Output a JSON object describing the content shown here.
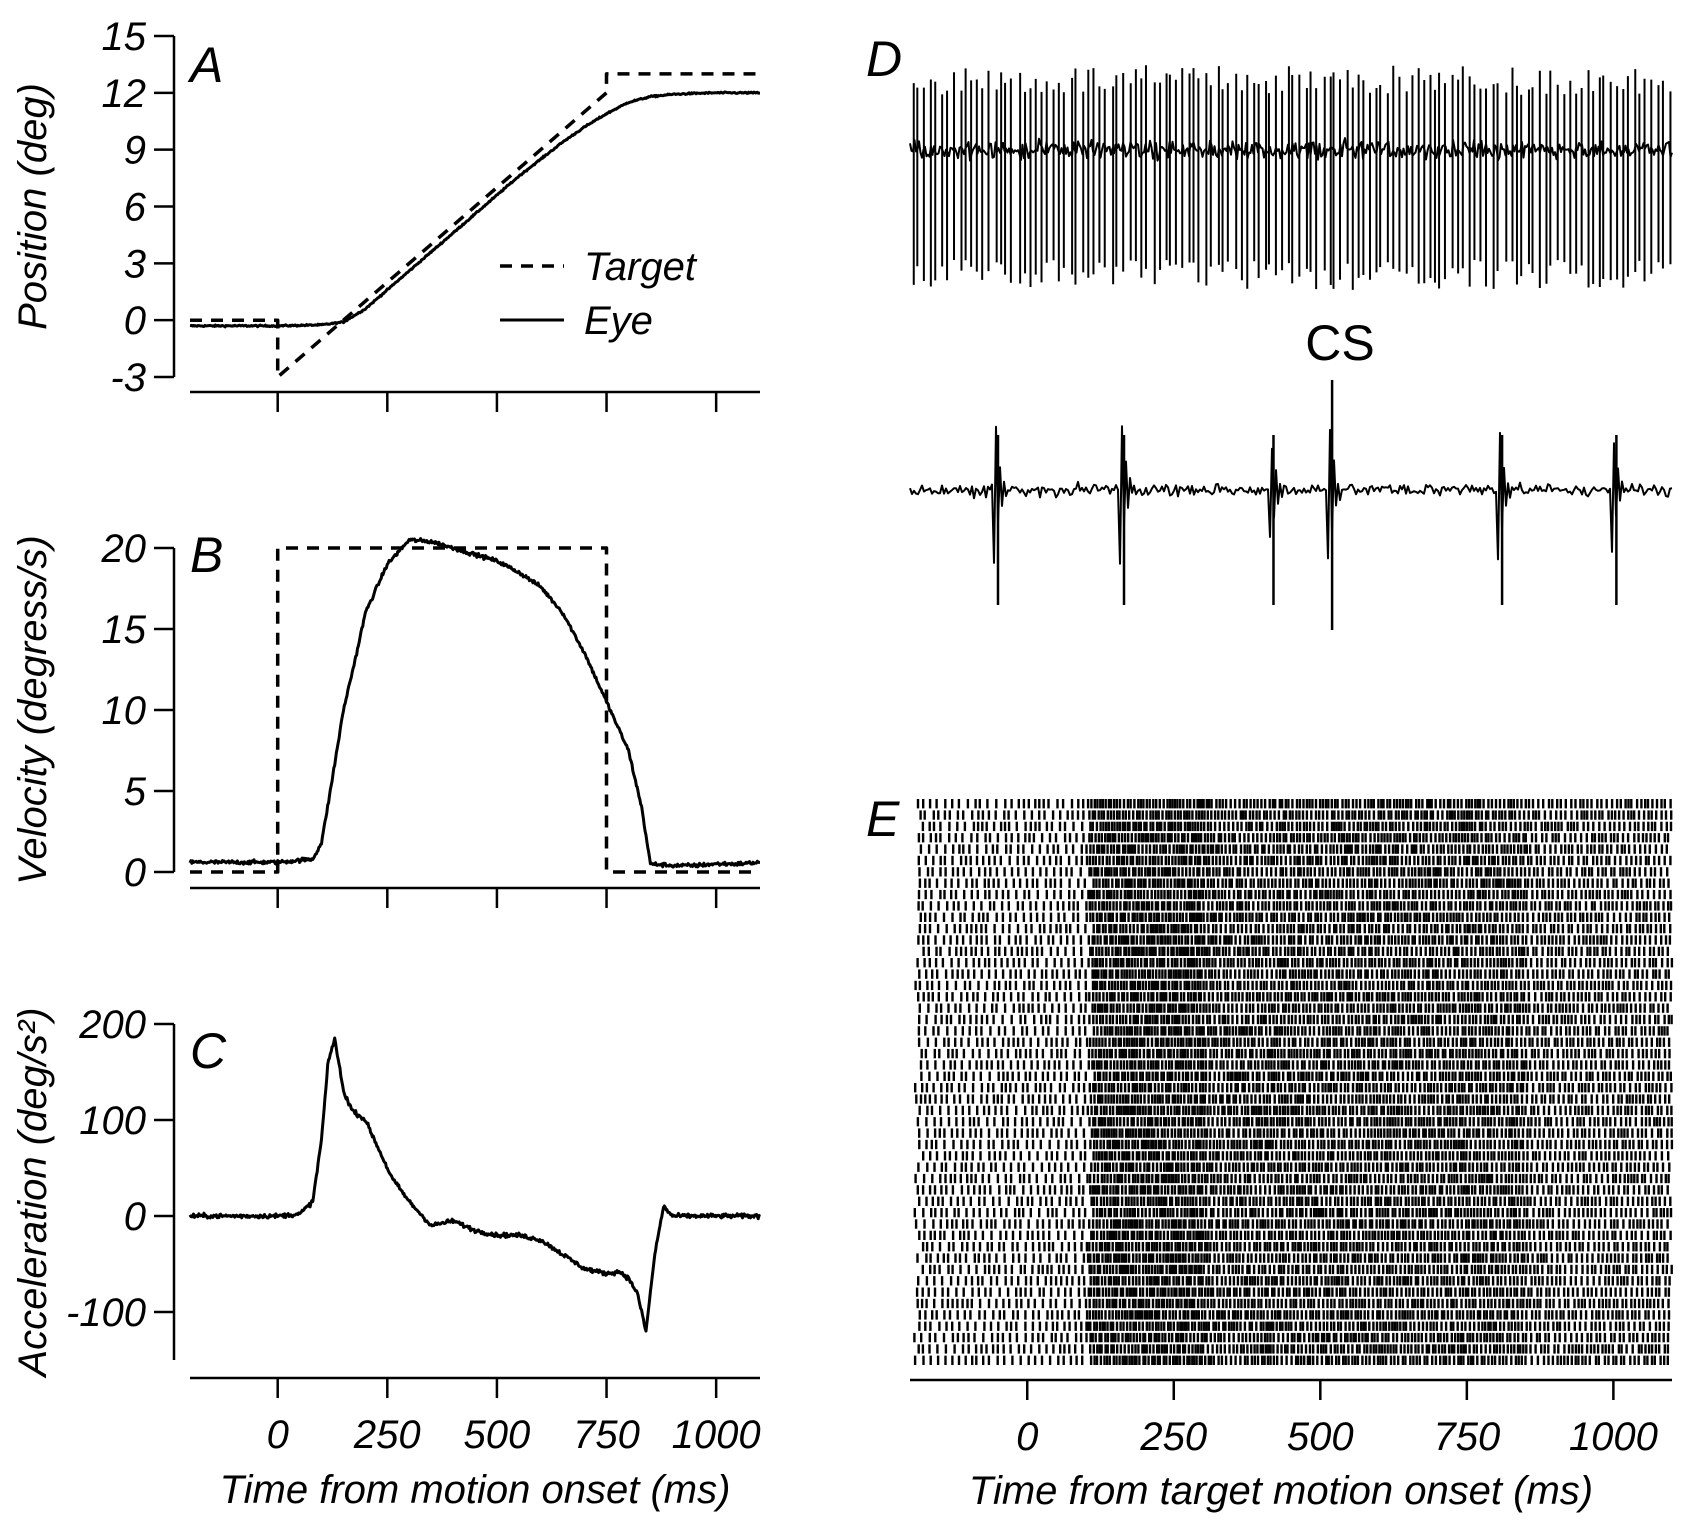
{
  "chart_data": [
    {
      "panel": "A",
      "type": "line",
      "ylabel": "Position (deg)",
      "xlabel": "",
      "xlim": [
        -200,
        1100
      ],
      "ylim": [
        -3,
        15
      ],
      "xticks": [
        0,
        250,
        500,
        750,
        1000
      ],
      "xtick_labels_shown": false,
      "yticks": [
        -3,
        0,
        3,
        6,
        9,
        12,
        15
      ],
      "legend": {
        "placement": "center-right"
      },
      "series": [
        {
          "name": "Target",
          "style": "dashed",
          "x": [
            -200,
            0,
            0,
            750,
            750,
            1100
          ],
          "y": [
            0,
            0,
            -3,
            12,
            13,
            13
          ]
        },
        {
          "name": "Eye",
          "style": "solid",
          "x": [
            -200,
            0,
            100,
            150,
            200,
            250,
            300,
            350,
            400,
            450,
            500,
            550,
            600,
            650,
            700,
            750,
            800,
            850,
            900,
            950,
            1000,
            1050,
            1100
          ],
          "y": [
            -0.3,
            -0.3,
            -0.25,
            -0.1,
            0.6,
            1.6,
            2.6,
            3.6,
            4.6,
            5.6,
            6.6,
            7.6,
            8.5,
            9.4,
            10.2,
            10.9,
            11.5,
            11.8,
            11.92,
            11.97,
            12.0,
            12.0,
            12.0
          ]
        }
      ]
    },
    {
      "panel": "B",
      "type": "line",
      "ylabel": "Velocity (degress/s)",
      "xlabel": "",
      "xlim": [
        -200,
        1100
      ],
      "ylim": [
        0,
        20
      ],
      "xticks": [
        0,
        250,
        500,
        750,
        1000
      ],
      "xtick_labels_shown": false,
      "yticks": [
        0,
        5,
        10,
        15,
        20
      ],
      "series": [
        {
          "style": "dashed",
          "x": [
            -200,
            0,
            0,
            750,
            750,
            1100
          ],
          "y": [
            0,
            0,
            20,
            20,
            0,
            0
          ]
        },
        {
          "style": "solid",
          "x": [
            -200,
            0,
            80,
            100,
            120,
            150,
            180,
            200,
            250,
            300,
            350,
            400,
            450,
            500,
            550,
            600,
            650,
            700,
            750,
            800,
            830,
            850,
            900,
            950,
            1000,
            1050,
            1100
          ],
          "y": [
            0.6,
            0.6,
            0.8,
            1.8,
            5,
            10,
            13.5,
            16,
            19,
            20.5,
            20.4,
            20,
            19.6,
            19.2,
            18.5,
            17.6,
            16,
            13.5,
            10.5,
            7.5,
            4,
            0.5,
            0.4,
            0.4,
            0.5,
            0.5,
            0.6
          ]
        }
      ]
    },
    {
      "panel": "C",
      "type": "line",
      "ylabel": "Acceleration (deg/s²)",
      "xlabel": "Time from motion onset (ms)",
      "xlim": [
        -200,
        1100
      ],
      "ylim": [
        -150,
        200
      ],
      "xticks": [
        0,
        250,
        500,
        750,
        1000
      ],
      "xtick_labels_shown": true,
      "yticks": [
        -100,
        0,
        100,
        200
      ],
      "series": [
        {
          "style": "solid",
          "x": [
            -200,
            0,
            50,
            80,
            100,
            115,
            130,
            150,
            170,
            200,
            230,
            260,
            300,
            350,
            400,
            450,
            500,
            550,
            600,
            650,
            700,
            750,
            780,
            800,
            820,
            840,
            860,
            880,
            900,
            950,
            1000,
            1050,
            1100
          ],
          "y": [
            0,
            0,
            2,
            15,
            80,
            160,
            185,
            130,
            110,
            100,
            70,
            40,
            15,
            -10,
            -5,
            -15,
            -20,
            -20,
            -25,
            -40,
            -55,
            -60,
            -58,
            -65,
            -80,
            -120,
            -40,
            10,
            0,
            0,
            0,
            0,
            0
          ]
        }
      ]
    },
    {
      "panel": "D",
      "type": "line",
      "annotation": "CS",
      "description_free": true,
      "xlim": [
        -200,
        1100
      ],
      "simple_spike_count": 130,
      "complex_spike_x": [
        -55,
        160,
        415,
        515,
        805,
        1000
      ]
    },
    {
      "panel": "E",
      "type": "scatter",
      "xlabel": "Time from target motion onset (ms)",
      "xlim": [
        -200,
        1100
      ],
      "xticks": [
        0,
        250,
        500,
        750,
        1000
      ],
      "trials": 50
    }
  ]
}
